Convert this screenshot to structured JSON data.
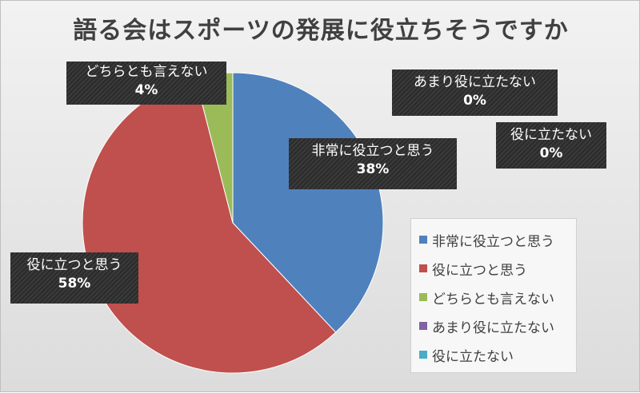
{
  "chart_data": {
    "type": "pie",
    "title": "語る会はスポーツの発展に役立ちそうですか",
    "categories": [
      "非常に役立つと思う",
      "役に立つと思う",
      "どちらとも言えない",
      "あまり役に立たない",
      "役に立たない"
    ],
    "values": [
      38,
      58,
      4,
      0,
      0
    ],
    "value_labels": [
      "38%",
      "58%",
      "4%",
      "0%",
      "0%"
    ],
    "colors": [
      "#4f81bd",
      "#c0504d",
      "#9bbb59",
      "#8064a2",
      "#4bacc6"
    ],
    "legend_position": "right",
    "data_labels": "callouts showing category name and percentage"
  }
}
